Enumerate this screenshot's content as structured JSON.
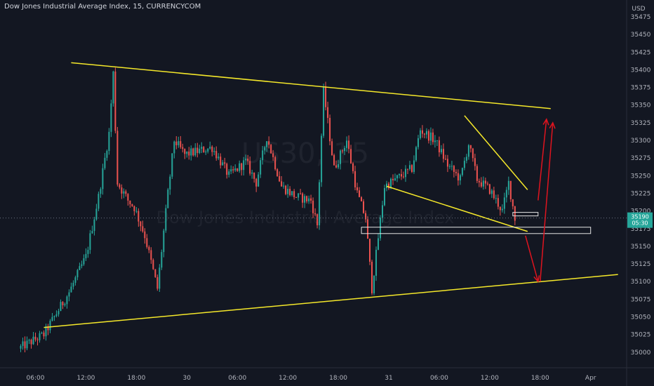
{
  "header": {
    "title": "Dow Jones Industrial Average Index, 15, CURRENCYCOM"
  },
  "axis": {
    "currency": "USD"
  },
  "watermark": {
    "symbol": "US30, 15",
    "name": "Dow Jones Industrial Average Index"
  },
  "price_tag": {
    "price": "35190",
    "countdown": "05:30"
  },
  "colors": {
    "background": "#131722",
    "up": "#26a69a",
    "down": "#ef5350",
    "trendline": "#f5e82a",
    "arrow": "#e0141f",
    "box": "#e6e6e6"
  },
  "chart_data": {
    "type": "candlestick",
    "title": "Dow Jones Industrial Average Index, 15, CURRENCYCOM",
    "ylim": [
      34985,
      35485
    ],
    "y_ticks": [
      35000,
      35025,
      35050,
      35075,
      35100,
      35125,
      35150,
      35175,
      35200,
      35225,
      35250,
      35275,
      35300,
      35325,
      35350,
      35375,
      35400,
      35425,
      35450,
      35475
    ],
    "x_ticks": [
      "06:00",
      "12:00",
      "18:00",
      "30",
      "06:00",
      "12:00",
      "18:00",
      "31",
      "06:00",
      "12:00",
      "18:00",
      "Apr"
    ],
    "grid": false,
    "last_price": 35190,
    "close_path": [
      [
        "29 Mar 04:00",
        35005
      ],
      [
        "29 Mar 07:00",
        35025
      ],
      [
        "29 Mar 10:00",
        35085
      ],
      [
        "29 Mar 12:00",
        35135
      ],
      [
        "29 Mar 13:30",
        35220
      ],
      [
        "29 Mar 14:45",
        35310
      ],
      [
        "29 Mar 15:15",
        35395
      ],
      [
        "29 Mar 15:45",
        35240
      ],
      [
        "29 Mar 17:00",
        35215
      ],
      [
        "29 Mar 17:45",
        35205
      ],
      [
        "29 Mar 19:00",
        35165
      ],
      [
        "29 Mar 20:30",
        35090
      ],
      [
        "29 Mar 21:45",
        35225
      ],
      [
        "29 Mar 22:30",
        35300
      ],
      [
        "29 Mar 23:45",
        35280
      ],
      [
        "30 Mar 03:00",
        35290
      ],
      [
        "30 Mar 05:00",
        35250
      ],
      [
        "30 Mar 07:00",
        35270
      ],
      [
        "30 Mar 08:15",
        35240
      ],
      [
        "30 Mar 09:30",
        35305
      ],
      [
        "30 Mar 11:15",
        35235
      ],
      [
        "30 Mar 13:00",
        35220
      ],
      [
        "30 Mar 14:45",
        35215
      ],
      [
        "30 Mar 15:30",
        35180
      ],
      [
        "30 Mar 16:15",
        35370
      ],
      [
        "30 Mar 17:30",
        35260
      ],
      [
        "30 Mar 19:00",
        35300
      ],
      [
        "30 Mar 20:15",
        35225
      ],
      [
        "30 Mar 21:15",
        35190
      ],
      [
        "30 Mar 22:00",
        35090
      ],
      [
        "30 Mar 23:30",
        35235
      ],
      [
        "31 Mar 01:30",
        35250
      ],
      [
        "31 Mar 02:45",
        35260
      ],
      [
        "31 Mar 03:45",
        35315
      ],
      [
        "31 Mar 05:30",
        35300
      ],
      [
        "31 Mar 07:00",
        35265
      ],
      [
        "31 Mar 08:30",
        35245
      ],
      [
        "31 Mar 09:30",
        35295
      ],
      [
        "31 Mar 10:30",
        35245
      ],
      [
        "31 Mar 12:00",
        35230
      ],
      [
        "31 Mar 13:30",
        35200
      ],
      [
        "31 Mar 14:15",
        35240
      ],
      [
        "31 Mar 15:00",
        35190
      ]
    ],
    "drawings": {
      "upper_trendline": [
        [
          "29 Mar 10:15",
          35410
        ],
        [
          "31 Mar 19:15",
          35345
        ]
      ],
      "lower_trendline": [
        [
          "29 Mar 07:00",
          35035
        ],
        [
          "1 Apr 03:15",
          35110
        ]
      ],
      "wedge_upper": [
        [
          "31 Mar 09:00",
          35335
        ],
        [
          "31 Mar 16:30",
          35230
        ]
      ],
      "wedge_lower": [
        [
          "30 Mar 23:45",
          35235
        ],
        [
          "31 Mar 16:30",
          35171
        ]
      ],
      "zone_1": [
        [
          "31 Mar 14:45",
          35198
        ],
        [
          "31 Mar 17:45",
          35193
        ]
      ],
      "zone_2": [
        [
          "30 Mar 20:45",
          35177
        ],
        [
          "1 Apr 00:00",
          35168
        ]
      ],
      "arrow_down_path": [
        [
          "31 Mar 16:15",
          35165
        ],
        [
          "31 Mar 17:45",
          35100
        ]
      ],
      "arrow_up_1": [
        [
          "31 Mar 18:00",
          35100
        ],
        [
          "31 Mar 19:30",
          35325
        ]
      ],
      "arrow_up_2": [
        [
          "31 Mar 17:45",
          35215
        ],
        [
          "31 Mar 18:45",
          35330
        ]
      ]
    }
  }
}
